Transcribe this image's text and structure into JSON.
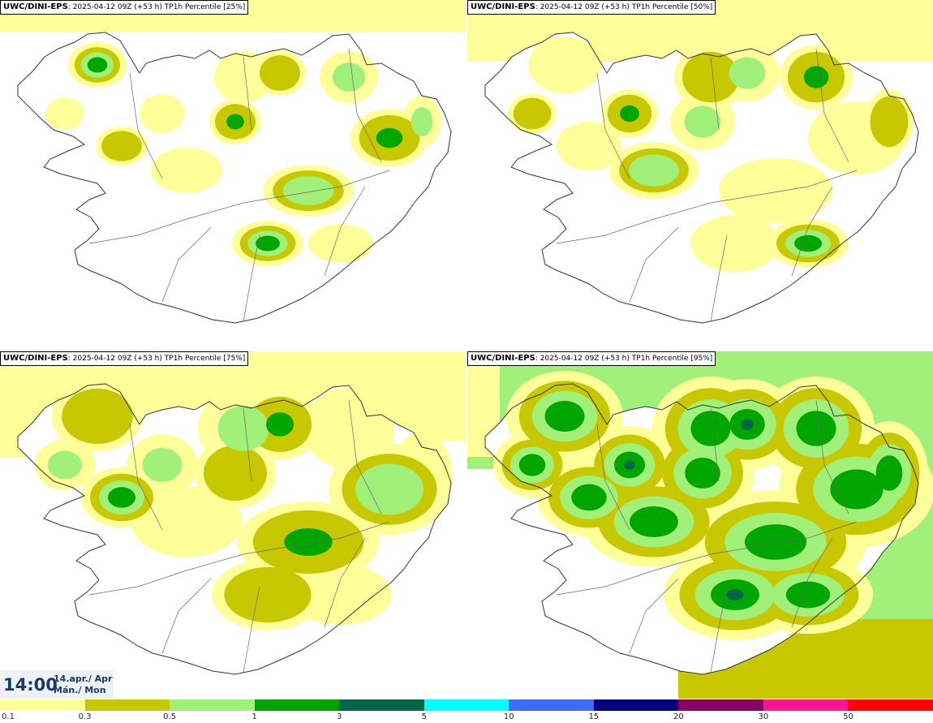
{
  "panels": [
    {
      "model": "UWC/DINI-EPS",
      "run": "2025-04-12 09Z (+53 h)",
      "field": "TP1h Percentile [25%]",
      "level": 0
    },
    {
      "model": "UWC/DINI-EPS",
      "run": "2025-04-12 09Z (+53 h)",
      "field": "TP1h Percentile [50%]",
      "level": 1
    },
    {
      "model": "UWC/DINI-EPS",
      "run": "2025-04-12 09Z (+53 h)",
      "field": "TP1h Percentile [75%]",
      "level": 2
    },
    {
      "model": "UWC/DINI-EPS",
      "run": "2025-04-12 09Z (+53 h)",
      "field": "TP1h Percentile [95%]",
      "level": 3
    }
  ],
  "valid_time": {
    "time": "14:00",
    "date": "14.apr./ Apr",
    "day": "Mán./ Mon"
  },
  "legend": {
    "labels": [
      "0.1",
      "0.3",
      "0.5",
      "1",
      "3",
      "5",
      "10",
      "15",
      "20",
      "30",
      "50"
    ],
    "colors": [
      "#ffff9a",
      "#c8c800",
      "#a0f07a",
      "#00a600",
      "#00664a",
      "#00ffff",
      "#3c6cff",
      "#000080",
      "#880066",
      "#ff1493",
      "#ff0000"
    ]
  }
}
